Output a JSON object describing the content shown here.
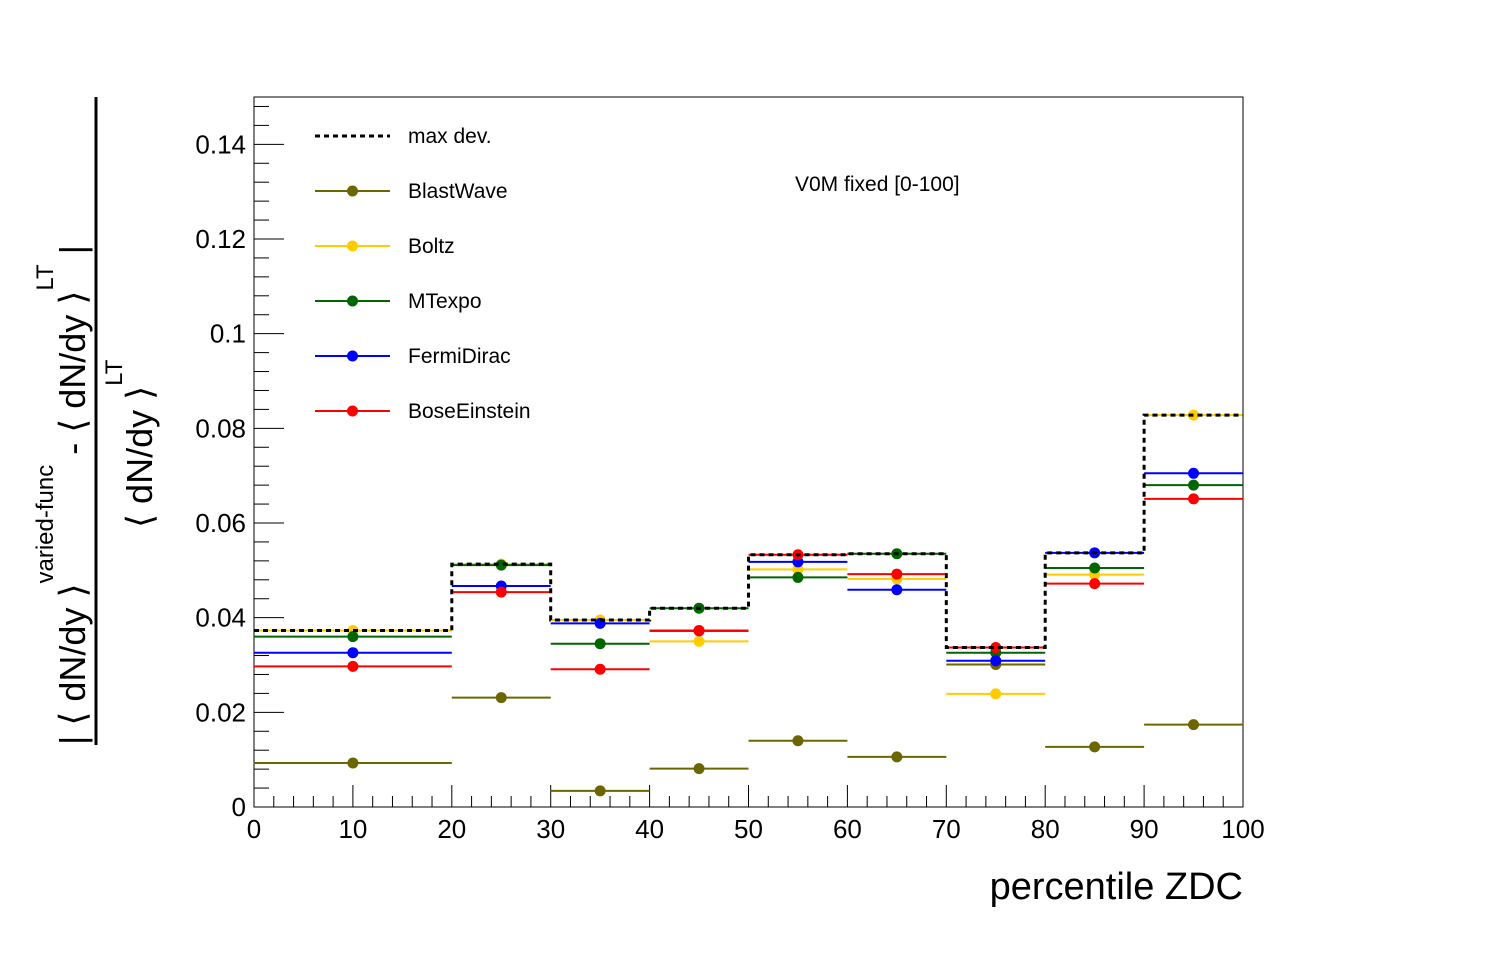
{
  "chart_data": {
    "type": "scatter",
    "title": "",
    "xlabel": "percentile ZDC",
    "ylabel": {
      "numerator": "| ⟨ dN/dy ⟩",
      "numerator_sup": "varied-func",
      "numerator_minus": " - ⟨ dN/dy ⟩",
      "numerator_sup2": "LT",
      "numerator_end": " |",
      "denominator": "⟨ dN/dy ⟩",
      "denominator_sup": "LT"
    },
    "xlim": [
      0,
      100
    ],
    "ylim": [
      0,
      0.15
    ],
    "xticks": [
      0,
      10,
      20,
      30,
      40,
      50,
      60,
      70,
      80,
      90,
      100
    ],
    "yticks": [
      0,
      0.02,
      0.04,
      0.06,
      0.08,
      0.1,
      0.12,
      0.14
    ],
    "xtick_labels": [
      "0",
      "10",
      "20",
      "30",
      "40",
      "50",
      "60",
      "70",
      "80",
      "90",
      "100"
    ],
    "ytick_labels": [
      "0",
      "0.02",
      "0.04",
      "0.06",
      "0.08",
      "0.1",
      "0.12",
      "0.14"
    ],
    "bins": [
      [
        0,
        20
      ],
      [
        20,
        30
      ],
      [
        30,
        40
      ],
      [
        40,
        50
      ],
      [
        50,
        60
      ],
      [
        60,
        70
      ],
      [
        70,
        80
      ],
      [
        80,
        90
      ],
      [
        90,
        100
      ]
    ],
    "legend_position": "top-left",
    "annotation": "V0M fixed [0-100]",
    "max_dev": {
      "name": "max dev.",
      "color": "#000000",
      "values": [
        0.0373,
        0.0513,
        0.0395,
        0.042,
        0.0533,
        0.0535,
        0.0337,
        0.0537,
        0.0828
      ]
    },
    "series": [
      {
        "name": "BlastWave",
        "color": "#6b6600",
        "values": [
          0.0093,
          0.0231,
          0.0034,
          0.0081,
          0.014,
          0.0106,
          0.0301,
          0.0127,
          0.0174
        ]
      },
      {
        "name": "Boltz",
        "color": "#ffcc00",
        "values": [
          0.0373,
          0.0513,
          0.0395,
          0.035,
          0.0502,
          0.0482,
          0.0239,
          0.0491,
          0.0828
        ]
      },
      {
        "name": "MTexpo",
        "color": "#006600",
        "values": [
          0.036,
          0.0511,
          0.0345,
          0.042,
          0.0485,
          0.0535,
          0.0326,
          0.0505,
          0.068
        ]
      },
      {
        "name": "FermiDirac",
        "color": "#0000ff",
        "values": [
          0.0326,
          0.0467,
          0.0388,
          0.0372,
          0.0518,
          0.0459,
          0.0309,
          0.0537,
          0.0705
        ]
      },
      {
        "name": "BoseEinstein",
        "color": "#ff0000",
        "values": [
          0.0297,
          0.0454,
          0.0291,
          0.0373,
          0.0533,
          0.0492,
          0.0337,
          0.0472,
          0.0651
        ]
      }
    ]
  }
}
